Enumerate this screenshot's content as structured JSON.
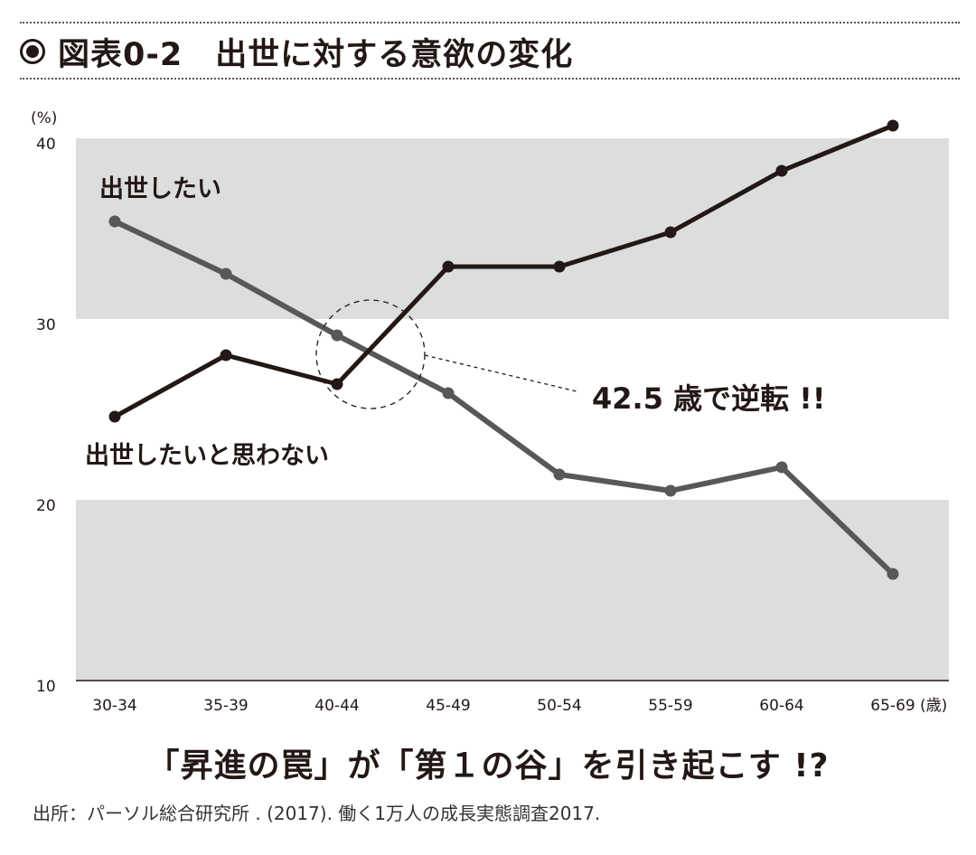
{
  "figure": {
    "number": "図表0-2",
    "title": "出世に対する意欲の変化"
  },
  "colors": {
    "band": "#dcdddd",
    "series_dark": "#231815",
    "series_gray": "#595757"
  },
  "chart_data": {
    "type": "line",
    "y_unit_label": "(%)",
    "x_unit_label": "(歳)",
    "categories": [
      "30-34",
      "35-39",
      "40-44",
      "45-49",
      "50-54",
      "55-59",
      "60-64",
      "65-69"
    ],
    "ylim": [
      10,
      40
    ],
    "yticks": [
      10,
      20,
      30,
      40
    ],
    "shaded_bands": [
      [
        20,
        30
      ],
      [
        10,
        20
      ]
    ],
    "series": [
      {
        "name": "出世したい",
        "color": "#595757",
        "values": [
          35.4,
          32.5,
          29.1,
          25.9,
          21.4,
          20.5,
          21.8,
          15.9
        ]
      },
      {
        "name": "出世したいと思わない",
        "color": "#231815",
        "values": [
          24.6,
          28.0,
          26.4,
          32.9,
          32.9,
          34.8,
          38.2,
          40.7
        ]
      }
    ],
    "annotation": "42.5 歳で逆転 !!",
    "grid": false,
    "legend": "inline labels"
  },
  "caption": "「昇進の罠」が「第１の谷」を引き起こす !?",
  "source": "出所：パーソル総合研究所 . (2017). 働く1万人の成長実態調査2017."
}
